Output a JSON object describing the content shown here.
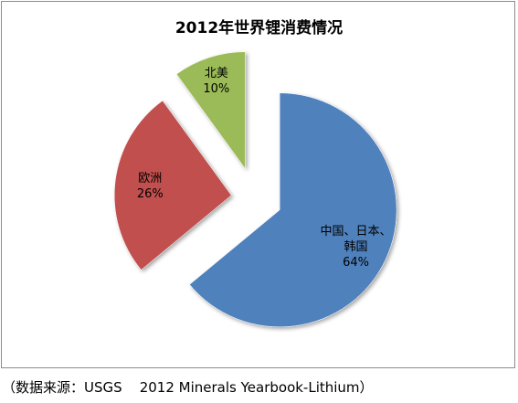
{
  "chart_data": {
    "type": "pie",
    "title": "2012年世界锂消费情况",
    "slices": [
      {
        "label_lines": [
          "中国、日本、",
          "韩国"
        ],
        "value": 64,
        "value_label": "64%",
        "color": "#4f81bd"
      },
      {
        "label_lines": [
          "欧洲"
        ],
        "value": 26,
        "value_label": "26%",
        "color": "#c0504d"
      },
      {
        "label_lines": [
          "北美"
        ],
        "value": 10,
        "value_label": "10%",
        "color": "#9bbb59"
      }
    ],
    "exploded": true,
    "legend": "none"
  },
  "source_note": "（数据来源：USGS    2012 Minerals Yearbook-Lithium）"
}
